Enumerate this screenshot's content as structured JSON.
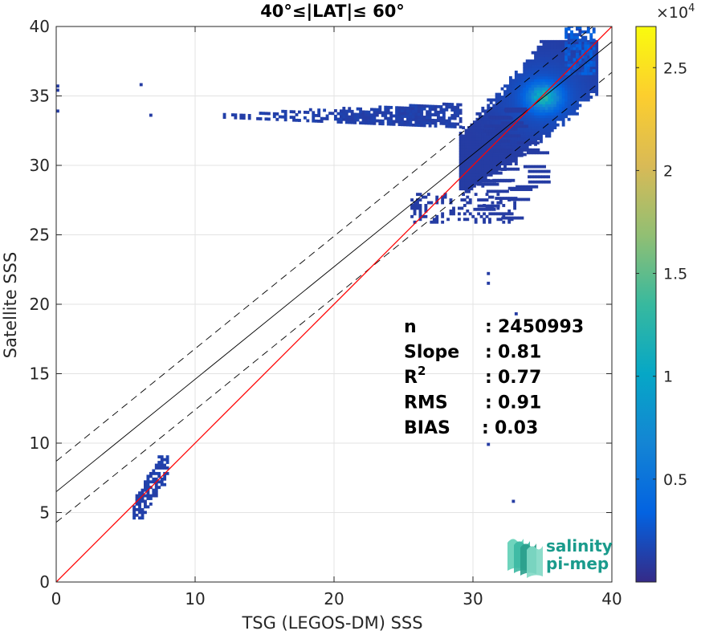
{
  "chart_data": {
    "type": "heatmap",
    "title": "40°≤|LAT|≤ 60°",
    "xlabel": "TSG (LEGOS-DM) SSS",
    "ylabel": "Satellite SSS",
    "xlim": [
      0,
      40
    ],
    "ylim": [
      0,
      40
    ],
    "xticks": [
      "0",
      "10",
      "20",
      "30",
      "40"
    ],
    "yticks": [
      "0",
      "5",
      "10",
      "15",
      "20",
      "25",
      "30",
      "35",
      "40"
    ],
    "grid": true,
    "colorbar": {
      "label_exponent": "×10",
      "exponent": "4",
      "ticks": [
        "0.5",
        "1",
        "1.5",
        "2",
        "2.5"
      ],
      "tick_values": [
        0.5,
        1,
        1.5,
        2,
        2.5
      ],
      "range": [
        0,
        2.7
      ],
      "colormap": [
        "#352a87",
        "#0363e1",
        "#1485d4",
        "#06a7c6",
        "#38b99e",
        "#92bf73",
        "#d9ba56",
        "#fcce2e",
        "#f9fb0e"
      ]
    },
    "lines": {
      "identity": {
        "slope": 1,
        "intercept": 0,
        "color": "#ff0000"
      },
      "regression": {
        "slope": 0.81,
        "intercept": 6.5,
        "color": "#000000"
      },
      "upper_bound": {
        "slope": 0.81,
        "intercept": 8.7,
        "color": "#000000",
        "style": "dashed"
      },
      "lower_bound": {
        "slope": 0.81,
        "intercept": 4.3,
        "color": "#000000",
        "style": "dashed"
      }
    },
    "density_regions": [
      {
        "x": [
          29,
          39
        ],
        "y": [
          27,
          39
        ],
        "peak": [
          35,
          34.8
        ]
      },
      {
        "x": [
          12,
          29
        ],
        "y": [
          32.5,
          34
        ],
        "peak": null
      },
      {
        "x": [
          5.5,
          8
        ],
        "y": [
          4.5,
          9
        ],
        "peak": null
      }
    ]
  },
  "stats": [
    {
      "label": "n",
      "sep": ":",
      "value": "2450993"
    },
    {
      "label": "Slope",
      "sep": ":",
      "value": "0.81"
    },
    {
      "label": "R",
      "sup": "2",
      "sep": ":",
      "value": "0.77"
    },
    {
      "label": "RMS",
      "sep": ":",
      "value": "0.91"
    },
    {
      "label": "BIAS",
      "sep": ":",
      "value": "0.03"
    }
  ],
  "logo": {
    "line1": "salinity",
    "line2": "pi-mep"
  }
}
